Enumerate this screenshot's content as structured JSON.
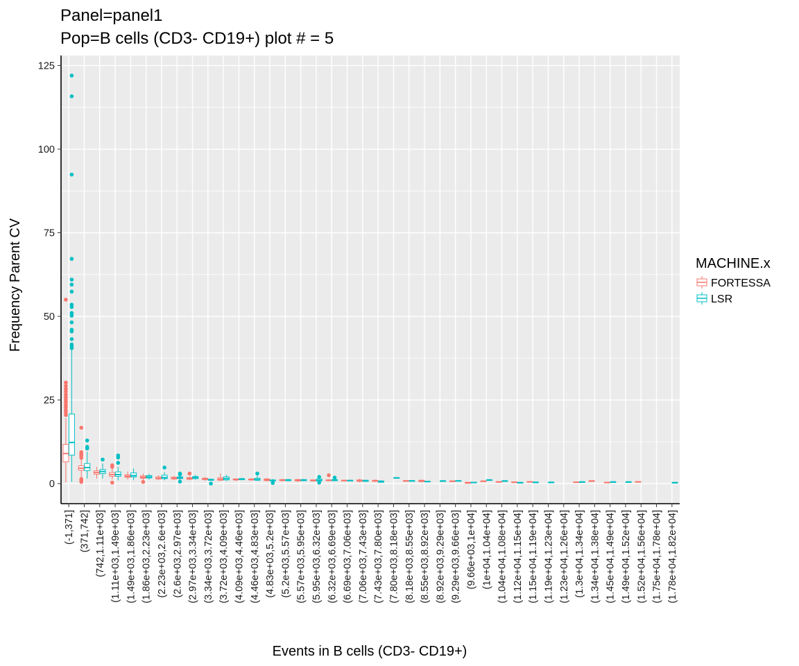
{
  "chart_data": {
    "type": "box",
    "title": "Panel=panel1",
    "subtitle": "Pop=B cells (CD3- CD19+) plot # = 5",
    "xlabel": "Events in B cells (CD3- CD19+)",
    "ylabel": "Frequency Parent CV",
    "ylim": [
      -6,
      128
    ],
    "yticks": [
      0,
      25,
      50,
      75,
      100,
      125
    ],
    "grid": true,
    "legend": {
      "title": "MACHINE.x",
      "placement": "right",
      "entries": [
        {
          "name": "FORTESSA",
          "color": "#F8766D"
        },
        {
          "name": "LSR",
          "color": "#00BFC4"
        }
      ]
    },
    "categories": [
      "(-1,371]",
      "(371,742]",
      "(742,1.11e+03]",
      "(1.11e+03,1.49e+03]",
      "(1.49e+03,1.86e+03]",
      "(1.86e+03,2.23e+03]",
      "(2.23e+03,2.6e+03]",
      "(2.6e+03,2.97e+03]",
      "(2.97e+03,3.34e+03]",
      "(3.34e+03,3.72e+03]",
      "(3.72e+03,4.09e+03]",
      "(4.09e+03,4.46e+03]",
      "(4.46e+03,4.83e+03]",
      "(4.83e+03,5.2e+03]",
      "(5.2e+03,5.57e+03]",
      "(5.57e+03,5.95e+03]",
      "(5.95e+03,6.32e+03]",
      "(6.32e+03,6.69e+03]",
      "(6.69e+03,7.06e+03]",
      "(7.06e+03,7.43e+03]",
      "(7.43e+03,7.80e+03]",
      "(7.80e+03,8.18e+03]",
      "(8.18e+03,8.55e+03]",
      "(8.55e+03,8.92e+03]",
      "(8.92e+03,9.29e+03]",
      "(9.29e+03,9.66e+03]",
      "(9.66e+03,1e+04]",
      "(1e+04,1.04e+04]",
      "(1.04e+04,1.08e+04]",
      "(1.12e+04,1.15e+04]",
      "(1.15e+04,1.19e+04]",
      "(1.19e+04,1.23e+04]",
      "(1.23e+04,1.26e+04]",
      "(1.3e+04,1.34e+04]",
      "(1.34e+04,1.38e+04]",
      "(1.45e+04,1.49e+04]",
      "(1.49e+04,1.52e+04]",
      "(1.52e+04,1.56e+04]",
      "(1.75e+04,1.78e+04]",
      "(1.78e+04,1.82e+04]"
    ],
    "series": [
      {
        "name": "FORTESSA",
        "color": "#F8766D",
        "boxes": [
          {
            "category": 0,
            "min": 0.3,
            "q1": 6.5,
            "median": 9.0,
            "q3": 11.7,
            "max": 19.5,
            "outliers": [
              20.5,
              21.3,
              22.0,
              22.8,
              23.5,
              24.3,
              25.0,
              25.8,
              26.6,
              27.5,
              28.3,
              29.2,
              30.2,
              55.0
            ]
          },
          {
            "category": 1,
            "min": 2.0,
            "q1": 4.0,
            "median": 4.6,
            "q3": 5.3,
            "max": 7.2,
            "outliers": [
              0.5,
              1.0,
              1.4,
              7.7,
              8.2,
              8.6,
              9.0,
              9.4,
              16.7
            ]
          },
          {
            "category": 2,
            "min": 1.5,
            "q1": 2.8,
            "median": 3.3,
            "q3": 3.8,
            "max": 5.0,
            "outliers": []
          },
          {
            "category": 3,
            "min": 1.3,
            "q1": 2.2,
            "median": 2.7,
            "q3": 3.3,
            "max": 4.5,
            "outliers": [
              0.3,
              5.0,
              5.5
            ]
          },
          {
            "category": 4,
            "min": 1.2,
            "q1": 1.9,
            "median": 2.2,
            "q3": 2.6,
            "max": 3.6,
            "outliers": []
          },
          {
            "category": 5,
            "min": 1.0,
            "q1": 1.6,
            "median": 1.9,
            "q3": 2.3,
            "max": 3.0,
            "outliers": [
              0.5
            ]
          },
          {
            "category": 6,
            "min": 1.0,
            "q1": 1.4,
            "median": 1.6,
            "q3": 2.0,
            "max": 2.5,
            "outliers": []
          },
          {
            "category": 7,
            "min": 1.0,
            "q1": 1.4,
            "median": 1.6,
            "q3": 1.9,
            "max": 2.3,
            "outliers": []
          },
          {
            "category": 8,
            "min": 1.0,
            "q1": 1.3,
            "median": 1.5,
            "q3": 1.8,
            "max": 2.2,
            "outliers": [
              3.0
            ]
          },
          {
            "category": 9,
            "min": 0.8,
            "q1": 1.2,
            "median": 1.4,
            "q3": 1.6,
            "max": 2.0,
            "outliers": []
          },
          {
            "category": 10,
            "min": 0.8,
            "q1": 1.0,
            "median": 1.3,
            "q3": 1.7,
            "max": 3.0,
            "outliers": []
          },
          {
            "category": 11,
            "min": 0.8,
            "q1": 1.1,
            "median": 1.2,
            "q3": 1.4,
            "max": 1.6,
            "outliers": []
          },
          {
            "category": 12,
            "min": 0.9,
            "q1": 1.1,
            "median": 1.2,
            "q3": 1.4,
            "max": 1.6,
            "outliers": []
          },
          {
            "category": 13,
            "min": 0.7,
            "q1": 0.9,
            "median": 1.1,
            "q3": 1.4,
            "max": 1.7,
            "outliers": []
          },
          {
            "category": 14,
            "min": 0.7,
            "q1": 0.9,
            "median": 1.0,
            "q3": 1.2,
            "max": 1.4,
            "outliers": []
          },
          {
            "category": 15,
            "min": 0.5,
            "q1": 0.8,
            "median": 1.0,
            "q3": 1.2,
            "max": 1.5,
            "outliers": []
          },
          {
            "category": 16,
            "min": 0.6,
            "q1": 0.8,
            "median": 0.9,
            "q3": 1.1,
            "max": 1.3,
            "outliers": []
          },
          {
            "category": 17,
            "min": 0.7,
            "q1": 0.9,
            "median": 1.0,
            "q3": 1.1,
            "max": 1.3,
            "outliers": [
              2.5
            ]
          },
          {
            "category": 18,
            "min": 0.6,
            "q1": 0.8,
            "median": 0.9,
            "q3": 1.0,
            "max": 1.1,
            "outliers": []
          },
          {
            "category": 19,
            "min": 0.4,
            "q1": 0.7,
            "median": 0.8,
            "q3": 1.1,
            "max": 1.5,
            "outliers": []
          },
          {
            "category": 20,
            "min": 0.5,
            "q1": 0.7,
            "median": 0.8,
            "q3": 1.0,
            "max": 1.2,
            "outliers": []
          },
          {
            "category": 22,
            "min": 0.6,
            "q1": 0.7,
            "median": 0.8,
            "q3": 0.9,
            "max": 1.0,
            "outliers": []
          },
          {
            "category": 23,
            "min": 0.3,
            "q1": 0.6,
            "median": 0.8,
            "q3": 1.0,
            "max": 1.2,
            "outliers": []
          },
          {
            "category": 25,
            "min": 0.6,
            "q1": 0.6,
            "median": 0.7,
            "q3": 0.8,
            "max": 0.8,
            "outliers": []
          },
          {
            "category": 26,
            "min": 0.0,
            "q1": 0.1,
            "median": 0.2,
            "q3": 0.4,
            "max": 0.5,
            "outliers": []
          },
          {
            "category": 27,
            "min": 0.4,
            "q1": 0.6,
            "median": 0.7,
            "q3": 0.8,
            "max": 0.9,
            "outliers": []
          },
          {
            "category": 28,
            "min": 0.3,
            "q1": 0.4,
            "median": 0.5,
            "q3": 0.6,
            "max": 0.6,
            "outliers": []
          },
          {
            "category": 29,
            "min": 0.2,
            "q1": 0.3,
            "median": 0.4,
            "q3": 0.5,
            "max": 0.5,
            "outliers": []
          },
          {
            "category": 30,
            "min": 0.4,
            "q1": 0.5,
            "median": 0.5,
            "q3": 0.6,
            "max": 0.6,
            "outliers": []
          },
          {
            "category": 33,
            "min": 0.3,
            "q1": 0.4,
            "median": 0.4,
            "q3": 0.5,
            "max": 0.5,
            "outliers": []
          },
          {
            "category": 34,
            "min": 0.7,
            "q1": 0.7,
            "median": 0.8,
            "q3": 0.8,
            "max": 0.9,
            "outliers": []
          },
          {
            "category": 35,
            "min": 0.2,
            "q1": 0.3,
            "median": 0.3,
            "q3": 0.4,
            "max": 0.4,
            "outliers": []
          },
          {
            "category": 37,
            "min": 0.4,
            "q1": 0.5,
            "median": 0.5,
            "q3": 0.6,
            "max": 0.6,
            "outliers": []
          }
        ]
      },
      {
        "name": "LSR",
        "color": "#00BFC4",
        "boxes": [
          {
            "category": 0,
            "min": 0.5,
            "q1": 8.5,
            "median": 12.3,
            "q3": 20.8,
            "max": 40.0,
            "outliers": [
              40.5,
              41.0,
              41.6,
              43.2,
              45.5,
              46.0,
              48.2,
              50.2,
              51.0,
              52.8,
              53.5,
              57.4,
              59.5,
              61.0,
              67.2,
              92.4,
              115.8,
              122.0
            ]
          },
          {
            "category": 1,
            "min": 1.5,
            "q1": 3.9,
            "median": 4.8,
            "q3": 6.0,
            "max": 9.5,
            "outliers": [
              10.5,
              11.0,
              12.9
            ]
          },
          {
            "category": 2,
            "min": 1.5,
            "q1": 3.0,
            "median": 3.6,
            "q3": 4.2,
            "max": 6.0,
            "outliers": [
              7.2
            ]
          },
          {
            "category": 3,
            "min": 1.0,
            "q1": 2.2,
            "median": 2.7,
            "q3": 3.5,
            "max": 5.0,
            "outliers": [
              6.2,
              7.8,
              8.4
            ]
          },
          {
            "category": 4,
            "min": 1.0,
            "q1": 2.0,
            "median": 2.4,
            "q3": 3.2,
            "max": 4.5,
            "outliers": []
          },
          {
            "category": 5,
            "min": 1.2,
            "q1": 1.7,
            "median": 2.0,
            "q3": 2.4,
            "max": 2.9,
            "outliers": []
          },
          {
            "category": 6,
            "min": 1.0,
            "q1": 1.5,
            "median": 1.8,
            "q3": 2.5,
            "max": 3.4,
            "outliers": [
              4.8
            ]
          },
          {
            "category": 7,
            "min": 0.9,
            "q1": 1.5,
            "median": 1.7,
            "q3": 2.0,
            "max": 2.5,
            "outliers": [
              0.6,
              2.7,
              3.0
            ]
          },
          {
            "category": 8,
            "min": 1.2,
            "q1": 1.5,
            "median": 1.8,
            "q3": 2.1,
            "max": 2.6,
            "outliers": []
          },
          {
            "category": 9,
            "min": 0.8,
            "q1": 1.0,
            "median": 1.1,
            "q3": 1.3,
            "max": 1.5,
            "outliers": [
              0.0
            ]
          },
          {
            "category": 10,
            "min": 0.8,
            "q1": 1.1,
            "median": 1.5,
            "q3": 2.0,
            "max": 2.6,
            "outliers": []
          },
          {
            "category": 11,
            "min": 1.0,
            "q1": 1.2,
            "median": 1.3,
            "q3": 1.5,
            "max": 1.7,
            "outliers": []
          },
          {
            "category": 12,
            "min": 0.8,
            "q1": 1.0,
            "median": 1.2,
            "q3": 1.6,
            "max": 2.3,
            "outliers": [
              3.0
            ]
          },
          {
            "category": 13,
            "min": 0.6,
            "q1": 0.8,
            "median": 0.9,
            "q3": 1.1,
            "max": 1.4,
            "outliers": [
              0.2
            ]
          },
          {
            "category": 14,
            "min": 0.7,
            "q1": 0.9,
            "median": 1.0,
            "q3": 1.2,
            "max": 1.4,
            "outliers": []
          },
          {
            "category": 15,
            "min": 0.7,
            "q1": 0.9,
            "median": 1.0,
            "q3": 1.2,
            "max": 1.4,
            "outliers": []
          },
          {
            "category": 16,
            "min": 0.6,
            "q1": 0.8,
            "median": 1.0,
            "q3": 1.4,
            "max": 1.8,
            "outliers": [
              0.3,
              2.0
            ]
          },
          {
            "category": 17,
            "min": 0.7,
            "q1": 0.9,
            "median": 1.0,
            "q3": 1.2,
            "max": 1.4,
            "outliers": [
              1.8
            ]
          },
          {
            "category": 18,
            "min": 0.7,
            "q1": 0.8,
            "median": 0.9,
            "q3": 1.0,
            "max": 1.1,
            "outliers": []
          },
          {
            "category": 19,
            "min": 0.5,
            "q1": 0.7,
            "median": 0.8,
            "q3": 1.0,
            "max": 1.2,
            "outliers": []
          },
          {
            "category": 20,
            "min": 0.2,
            "q1": 0.4,
            "median": 0.6,
            "q3": 0.8,
            "max": 1.0,
            "outliers": []
          },
          {
            "category": 21,
            "min": 1.5,
            "q1": 1.6,
            "median": 1.7,
            "q3": 1.8,
            "max": 1.9,
            "outliers": []
          },
          {
            "category": 22,
            "min": 0.6,
            "q1": 0.7,
            "median": 0.8,
            "q3": 0.9,
            "max": 1.0,
            "outliers": []
          },
          {
            "category": 23,
            "min": 0.5,
            "q1": 0.6,
            "median": 0.6,
            "q3": 0.7,
            "max": 0.7,
            "outliers": []
          },
          {
            "category": 24,
            "min": 0.6,
            "q1": 0.7,
            "median": 0.8,
            "q3": 0.8,
            "max": 0.9,
            "outliers": []
          },
          {
            "category": 25,
            "min": 0.7,
            "q1": 0.8,
            "median": 0.8,
            "q3": 0.9,
            "max": 0.9,
            "outliers": []
          },
          {
            "category": 26,
            "min": 0.2,
            "q1": 0.3,
            "median": 0.3,
            "q3": 0.4,
            "max": 0.4,
            "outliers": []
          },
          {
            "category": 27,
            "min": 1.0,
            "q1": 1.0,
            "median": 1.1,
            "q3": 1.1,
            "max": 1.2,
            "outliers": []
          },
          {
            "category": 28,
            "min": 0.7,
            "q1": 0.7,
            "median": 0.8,
            "q3": 0.8,
            "max": 0.8,
            "outliers": []
          },
          {
            "category": 29,
            "min": 0.2,
            "q1": 0.3,
            "median": 0.3,
            "q3": 0.3,
            "max": 0.4,
            "outliers": []
          },
          {
            "category": 30,
            "min": 0.3,
            "q1": 0.3,
            "median": 0.4,
            "q3": 0.4,
            "max": 0.5,
            "outliers": []
          },
          {
            "category": 31,
            "min": 0.3,
            "q1": 0.3,
            "median": 0.4,
            "q3": 0.4,
            "max": 0.5,
            "outliers": []
          },
          {
            "category": 33,
            "min": 0.4,
            "q1": 0.4,
            "median": 0.5,
            "q3": 0.5,
            "max": 0.5,
            "outliers": []
          },
          {
            "category": 35,
            "min": 0.4,
            "q1": 0.4,
            "median": 0.5,
            "q3": 0.5,
            "max": 0.5,
            "outliers": []
          },
          {
            "category": 36,
            "min": 0.4,
            "q1": 0.4,
            "median": 0.5,
            "q3": 0.5,
            "max": 0.5,
            "outliers": []
          },
          {
            "category": 39,
            "min": 0.2,
            "q1": 0.2,
            "median": 0.3,
            "q3": 0.3,
            "max": 0.3,
            "outliers": []
          }
        ]
      }
    ]
  }
}
